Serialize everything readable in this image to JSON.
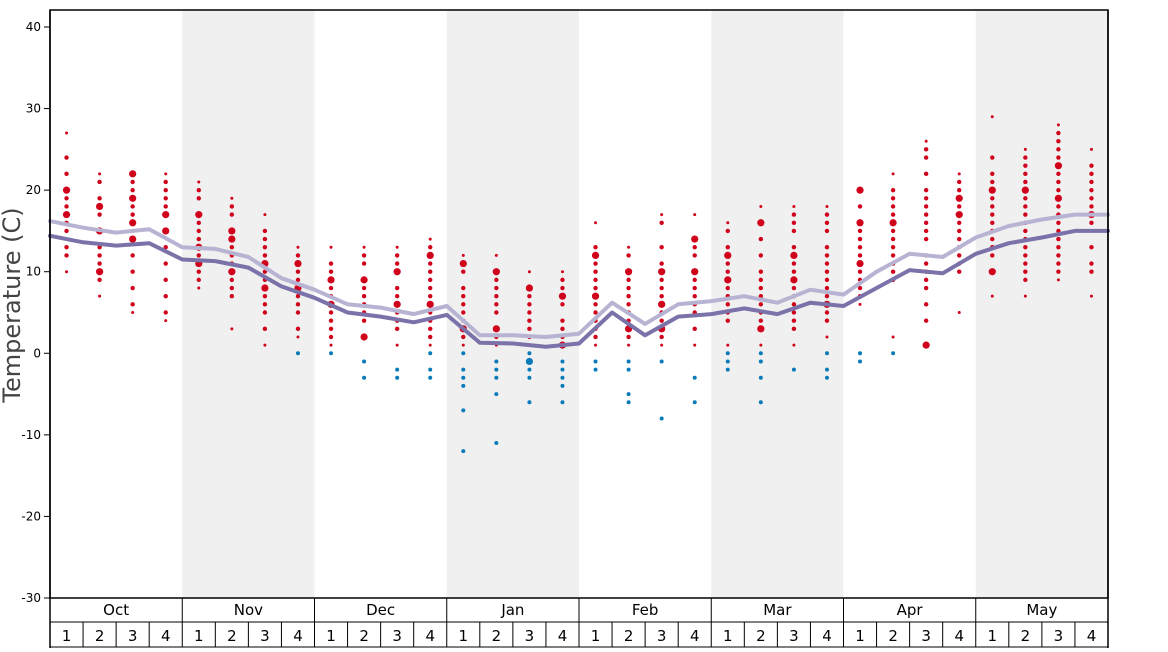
{
  "chart_data": {
    "type": "scatter",
    "ylabel": "Temperature (C)",
    "ylim": [
      -30,
      42
    ],
    "yticks": [
      -30,
      -20,
      -10,
      0,
      10,
      20,
      30,
      40
    ],
    "months": [
      "Oct",
      "Nov",
      "Dec",
      "Jan",
      "Feb",
      "Mar",
      "Apr",
      "May"
    ],
    "weeks": [
      "1",
      "2",
      "3",
      "4"
    ],
    "colors": {
      "warm_points": "#d0021b",
      "cold_points": "#0a7ab8",
      "line_light": "#b6b3d3",
      "line_dark": "#7a72a8",
      "shade": "#f0f0f0"
    },
    "series": [
      {
        "role": "line_light",
        "values": [
          16.2,
          15.4,
          14.8,
          15.2,
          13.0,
          12.8,
          11.8,
          9.2,
          7.8,
          6.0,
          5.6,
          4.8,
          5.8,
          2.2,
          2.2,
          2.0,
          2.4,
          6.2,
          3.6,
          6.0,
          6.4,
          7.0,
          6.2,
          7.8,
          7.2,
          10.0,
          12.2,
          11.8,
          14.2,
          15.6,
          16.4,
          17.0,
          17.0
        ]
      },
      {
        "role": "line_dark",
        "values": [
          14.4,
          13.6,
          13.2,
          13.5,
          11.5,
          11.3,
          10.5,
          8.2,
          6.8,
          5.0,
          4.5,
          3.8,
          4.7,
          1.3,
          1.2,
          0.8,
          1.2,
          5.0,
          2.2,
          4.5,
          4.8,
          5.5,
          4.8,
          6.2,
          5.8,
          8.0,
          10.2,
          9.8,
          12.2,
          13.5,
          14.2,
          15.0,
          15.0
        ]
      }
    ],
    "points": [
      {
        "week": 1,
        "warm": [
          27,
          24,
          22,
          20,
          19,
          18,
          17,
          16,
          15,
          13,
          12,
          10
        ],
        "cold": [],
        "big": [
          20,
          17
        ]
      },
      {
        "week": 2,
        "warm": [
          22,
          21,
          19,
          18,
          17,
          15,
          13,
          12,
          11,
          10,
          9,
          7
        ],
        "cold": [],
        "big": [
          18,
          15,
          10
        ]
      },
      {
        "week": 3,
        "warm": [
          22,
          21,
          20,
          19,
          18,
          17,
          16,
          14,
          12,
          10,
          8,
          6,
          5
        ],
        "cold": [],
        "big": [
          22,
          19,
          16,
          14
        ]
      },
      {
        "week": 4,
        "warm": [
          22,
          21,
          20,
          19,
          18,
          17,
          15,
          13,
          11,
          9,
          7,
          5,
          4
        ],
        "cold": [],
        "big": [
          17,
          15
        ]
      },
      {
        "week": 5,
        "warm": [
          21,
          20,
          19,
          17,
          16,
          15,
          14,
          13,
          12,
          11,
          10,
          9,
          8
        ],
        "cold": [],
        "big": [
          17,
          13,
          11
        ]
      },
      {
        "week": 6,
        "warm": [
          19,
          18,
          17,
          15,
          14,
          13,
          12,
          11,
          10,
          9,
          8,
          7,
          3
        ],
        "cold": [],
        "big": [
          15,
          14,
          10
        ]
      },
      {
        "week": 7,
        "warm": [
          17,
          15,
          14,
          13,
          12,
          11,
          10,
          9,
          8,
          7,
          6,
          5,
          3,
          1
        ],
        "cold": [],
        "big": [
          11,
          8
        ]
      },
      {
        "week": 8,
        "warm": [
          13,
          12,
          11,
          10,
          9,
          8,
          7,
          6,
          5,
          3,
          2
        ],
        "cold": [
          0
        ],
        "big": [
          11,
          8
        ]
      },
      {
        "week": 9,
        "warm": [
          13,
          11,
          10,
          9,
          8,
          7,
          6,
          5,
          4,
          3,
          2,
          1
        ],
        "cold": [
          0
        ],
        "big": [
          9,
          6
        ]
      },
      {
        "week": 10,
        "warm": [
          13,
          12,
          11,
          9,
          8,
          7,
          6,
          5,
          4,
          2
        ],
        "cold": [
          -1,
          -3
        ],
        "big": [
          9,
          2
        ]
      },
      {
        "week": 11,
        "warm": [
          13,
          12,
          11,
          10,
          8,
          7,
          6,
          5,
          4,
          3,
          1
        ],
        "cold": [
          -2,
          -3
        ],
        "big": [
          10,
          6
        ]
      },
      {
        "week": 12,
        "warm": [
          14,
          13,
          12,
          11,
          10,
          9,
          8,
          7,
          6,
          5,
          4,
          3,
          2,
          1
        ],
        "cold": [
          0,
          -2,
          -3
        ],
        "big": [
          12,
          6
        ]
      },
      {
        "week": 13,
        "warm": [
          12,
          11,
          10,
          8,
          7,
          6,
          5,
          4,
          3,
          2,
          1
        ],
        "cold": [
          0,
          -2,
          -3,
          -4,
          -7,
          -12
        ],
        "big": [
          11,
          3
        ]
      },
      {
        "week": 14,
        "warm": [
          12,
          10,
          9,
          8,
          7,
          6,
          5,
          3,
          2,
          1
        ],
        "cold": [
          -1,
          -2,
          -3,
          -5,
          -11
        ],
        "big": [
          10,
          3
        ]
      },
      {
        "week": 15,
        "warm": [
          10,
          8,
          7,
          6,
          5,
          4,
          3,
          2,
          1
        ],
        "cold": [
          0,
          -1,
          -2,
          -3,
          -6
        ],
        "big": [
          8,
          -1
        ]
      },
      {
        "week": 16,
        "warm": [
          10,
          9,
          8,
          7,
          6,
          4,
          3,
          2,
          1
        ],
        "cold": [
          -1,
          -2,
          -3,
          -4,
          -6
        ],
        "big": [
          7,
          1
        ]
      },
      {
        "week": 17,
        "warm": [
          16,
          13,
          12,
          11,
          10,
          9,
          8,
          7,
          6,
          5,
          4,
          3,
          2,
          1
        ],
        "cold": [
          -1,
          -2
        ],
        "big": [
          12,
          7
        ]
      },
      {
        "week": 18,
        "warm": [
          13,
          12,
          10,
          9,
          8,
          7,
          6,
          5,
          4,
          3,
          2,
          1
        ],
        "cold": [
          -1,
          -2,
          -5,
          -6
        ],
        "big": [
          10,
          3
        ]
      },
      {
        "week": 19,
        "warm": [
          17,
          16,
          13,
          11,
          10,
          9,
          8,
          7,
          6,
          5,
          4,
          3,
          2,
          1
        ],
        "cold": [
          -1,
          -8
        ],
        "big": [
          10,
          6,
          3
        ]
      },
      {
        "week": 20,
        "warm": [
          17,
          14,
          13,
          12,
          10,
          9,
          8,
          7,
          6,
          5,
          3,
          1
        ],
        "cold": [
          -3,
          -6
        ],
        "big": [
          14,
          10
        ]
      },
      {
        "week": 21,
        "warm": [
          16,
          15,
          13,
          12,
          11,
          10,
          9,
          8,
          7,
          6,
          5,
          4,
          1
        ],
        "cold": [
          0,
          -1,
          -2
        ],
        "big": [
          12,
          9
        ]
      },
      {
        "week": 22,
        "warm": [
          18,
          16,
          14,
          12,
          10,
          9,
          8,
          7,
          6,
          5,
          4,
          3,
          1
        ],
        "cold": [
          0,
          -1,
          -3,
          -6
        ],
        "big": [
          16,
          3
        ]
      },
      {
        "week": 23,
        "warm": [
          18,
          17,
          16,
          15,
          13,
          12,
          11,
          10,
          9,
          8,
          7,
          6,
          5,
          4,
          3,
          1
        ],
        "cold": [
          -2
        ],
        "big": [
          12,
          9
        ]
      },
      {
        "week": 24,
        "warm": [
          18,
          17,
          16,
          15,
          13,
          12,
          11,
          10,
          9,
          8,
          7,
          6,
          5,
          4,
          2
        ],
        "cold": [
          0,
          -2,
          -3
        ],
        "big": [
          6
        ]
      },
      {
        "week": 25,
        "warm": [
          20,
          18,
          16,
          15,
          14,
          13,
          12,
          11,
          10,
          9,
          8,
          7,
          6
        ],
        "cold": [
          0,
          -1
        ],
        "big": [
          20,
          16,
          11
        ]
      },
      {
        "week": 26,
        "warm": [
          22,
          20,
          19,
          18,
          17,
          16,
          15,
          14,
          13,
          12,
          11,
          10,
          9,
          2
        ],
        "cold": [
          0
        ],
        "big": [
          16
        ]
      },
      {
        "week": 27,
        "warm": [
          26,
          25,
          24,
          22,
          20,
          19,
          18,
          17,
          16,
          15,
          14,
          12,
          11,
          10,
          9,
          8,
          6,
          4,
          1
        ],
        "cold": [],
        "big": [
          1
        ]
      },
      {
        "week": 28,
        "warm": [
          22,
          21,
          20,
          19,
          18,
          17,
          16,
          15,
          14,
          13,
          12,
          11,
          10,
          5
        ],
        "cold": [],
        "big": [
          19,
          17
        ]
      },
      {
        "week": 29,
        "warm": [
          29,
          24,
          22,
          21,
          20,
          19,
          18,
          17,
          16,
          15,
          14,
          13,
          12,
          10,
          7
        ],
        "cold": [],
        "big": [
          20,
          10
        ]
      },
      {
        "week": 30,
        "warm": [
          25,
          24,
          23,
          22,
          21,
          20,
          19,
          18,
          17,
          16,
          15,
          14,
          13,
          12,
          11,
          10,
          9,
          7
        ],
        "cold": [],
        "big": [
          20
        ]
      },
      {
        "week": 31,
        "warm": [
          28,
          27,
          26,
          25,
          24,
          23,
          22,
          21,
          20,
          19,
          18,
          17,
          16,
          15,
          14,
          13,
          12,
          11,
          10,
          9
        ],
        "cold": [],
        "big": [
          23,
          19
        ]
      },
      {
        "week": 32,
        "warm": [
          25,
          23,
          22,
          21,
          20,
          19,
          18,
          17,
          16,
          13,
          11,
          10,
          7
        ],
        "cold": [],
        "big": [
          17
        ]
      }
    ]
  }
}
